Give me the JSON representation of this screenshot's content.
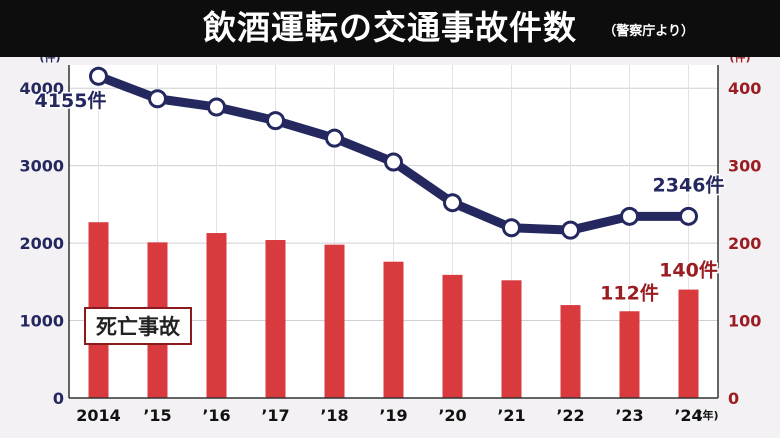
{
  "title": "飲酒運転の交通事故件数",
  "source": "（警察庁より）",
  "legend_box": "死亡事故",
  "colors": {
    "line": "#24285f",
    "bar": "#d93a3e",
    "left_axis": "#24285f",
    "right_axis": "#9a1d22",
    "title_bg": "#0d0d0d"
  },
  "chart_data": {
    "type": "bar+line",
    "categories": [
      "2014",
      "’15",
      "’16",
      "’17",
      "’18",
      "’19",
      "’20",
      "’21",
      "’22",
      "’23",
      "’24"
    ],
    "x_unit": "(年)",
    "left_axis": {
      "unit": "(件)",
      "ticks": [
        "0",
        "1000",
        "2000",
        "3000",
        "4000"
      ],
      "ylim": [
        0,
        4300
      ]
    },
    "right_axis": {
      "unit": "(件)",
      "ticks": [
        "0",
        "100",
        "200",
        "300",
        "400"
      ],
      "ylim": [
        0,
        430
      ]
    },
    "series": [
      {
        "axis": "left",
        "type": "line",
        "values": [
          4155,
          3864,
          3757,
          3582,
          3355,
          3047,
          2522,
          2198,
          2167,
          2346,
          2346
        ]
      },
      {
        "name": "死亡事故",
        "axis": "right",
        "type": "bar",
        "values": [
          227,
          201,
          213,
          204,
          198,
          176,
          159,
          152,
          120,
          112,
          140
        ]
      }
    ],
    "annotations": [
      {
        "text": "4155件",
        "series": 0,
        "index": 0
      },
      {
        "text": "2346件",
        "series": 0,
        "index": 10
      },
      {
        "text": "112件",
        "series": 1,
        "index": 9
      },
      {
        "text": "140件",
        "series": 1,
        "index": 10
      }
    ],
    "grid": true
  }
}
